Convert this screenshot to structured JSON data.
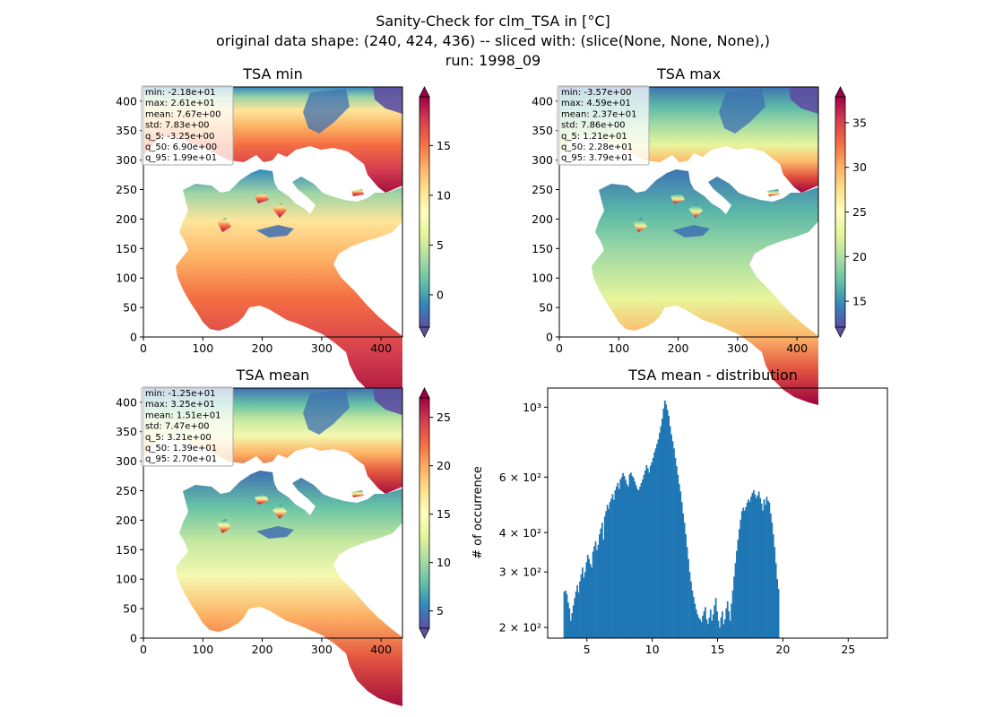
{
  "figure": {
    "title_lines": [
      "Sanity-Check for clm_TSA in [°C]",
      "original data shape: (240, 424, 436) -- sliced with: (slice(None, None, None),)",
      "run: 1998_09"
    ]
  },
  "chart_data": [
    {
      "type": "heatmap",
      "title": "TSA min",
      "colormap": "Spectral_r",
      "xlim": [
        0,
        436
      ],
      "ylim": [
        0,
        424
      ],
      "xticks": [
        0,
        100,
        200,
        300,
        400
      ],
      "yticks": [
        0,
        50,
        100,
        150,
        200,
        250,
        300,
        350,
        400
      ],
      "colorbar": {
        "range": [
          -3.25,
          19.9
        ],
        "ticks": [
          0,
          5,
          10,
          15
        ],
        "tick_labels": [
          "0",
          "5",
          "10",
          "15"
        ],
        "extend": "both"
      },
      "stats": [
        "min: -2.18e+01",
        "max: 2.61e+01",
        "mean: 7.67e+00",
        "std: 7.83e+00",
        "q_5: -3.25e+00",
        "q_50: 6.90e+00",
        "q_95: 1.99e+01"
      ]
    },
    {
      "type": "heatmap",
      "title": "TSA max",
      "colormap": "Spectral_r",
      "xlim": [
        0,
        436
      ],
      "ylim": [
        0,
        424
      ],
      "xticks": [
        0,
        100,
        200,
        300,
        400
      ],
      "yticks": [
        0,
        50,
        100,
        150,
        200,
        250,
        300,
        350,
        400
      ],
      "colorbar": {
        "range": [
          12.1,
          37.9
        ],
        "ticks": [
          15,
          20,
          25,
          30,
          35
        ],
        "tick_labels": [
          "15",
          "20",
          "25",
          "30",
          "35"
        ],
        "extend": "both"
      },
      "stats": [
        "min: -3.57e+00",
        "max: 4.59e+01",
        "mean: 2.37e+01",
        "std: 7.86e+00",
        "q_5: 1.21e+01",
        "q_50: 2.28e+01",
        "q_95: 3.79e+01"
      ]
    },
    {
      "type": "heatmap",
      "title": "TSA mean",
      "colormap": "Spectral_r",
      "xlim": [
        0,
        436
      ],
      "ylim": [
        0,
        424
      ],
      "xticks": [
        0,
        100,
        200,
        300,
        400
      ],
      "yticks": [
        0,
        50,
        100,
        150,
        200,
        250,
        300,
        350,
        400
      ],
      "colorbar": {
        "range": [
          3.21,
          27.0
        ],
        "ticks": [
          5,
          10,
          15,
          20,
          25
        ],
        "tick_labels": [
          "5",
          "10",
          "15",
          "20",
          "25"
        ],
        "extend": "both"
      },
      "stats": [
        "min: -1.25e+01",
        "max: 3.25e+01",
        "mean: 1.51e+01",
        "std: 7.47e+00",
        "q_5: 3.21e+00",
        "q_50: 1.39e+01",
        "q_95: 2.70e+01"
      ]
    },
    {
      "type": "bar",
      "title": "TSA mean - distribution",
      "ylabel": "# of occurrence",
      "yscale": "log",
      "xlim": [
        2,
        28
      ],
      "ylim": [
        185,
        1150
      ],
      "xticks": [
        5,
        10,
        15,
        20,
        25
      ],
      "yticks": [
        200,
        300,
        400,
        600,
        1000
      ],
      "ytick_labels": [
        "2 × 10²",
        "3 × 10²",
        "4 × 10²",
        "6 × 10²",
        "10³"
      ],
      "color": "#1f77b4",
      "x_start": 3.21,
      "bin_width": 0.1,
      "values": [
        260,
        262,
        255,
        240,
        230,
        210,
        222,
        235,
        248,
        260,
        272,
        258,
        280,
        295,
        310,
        288,
        300,
        322,
        340,
        330,
        318,
        310,
        348,
        362,
        375,
        352,
        366,
        395,
        412,
        430,
        380,
        450,
        468,
        490,
        476,
        500,
        512,
        530,
        508,
        545,
        560,
        575,
        550,
        590,
        600,
        618,
        605,
        588,
        570,
        560,
        612,
        620,
        605,
        598,
        580,
        565,
        550,
        545,
        560,
        575,
        590,
        610,
        630,
        655,
        640,
        620,
        652,
        668,
        690,
        720,
        740,
        765,
        790,
        830,
        870,
        920,
        990,
        1050,
        1020,
        980,
        940,
        870,
        820,
        780,
        740,
        690,
        650,
        610,
        570,
        540,
        500,
        460,
        430,
        395,
        360,
        330,
        300,
        280,
        262,
        250,
        238,
        228,
        220,
        215,
        212,
        208,
        218,
        225,
        232,
        212,
        205,
        215,
        228,
        210,
        220,
        235,
        248,
        225,
        210,
        200,
        215,
        225,
        205,
        212,
        230,
        242,
        225,
        210,
        238,
        262,
        290,
        320,
        350,
        380,
        410,
        440,
        468,
        480,
        470,
        482,
        498,
        510,
        502,
        520,
        535,
        545,
        528,
        515,
        525,
        540,
        515,
        495,
        470,
        510,
        490,
        520,
        505,
        498,
        460,
        430,
        395,
        360,
        320,
        285,
        265
      ]
    }
  ]
}
